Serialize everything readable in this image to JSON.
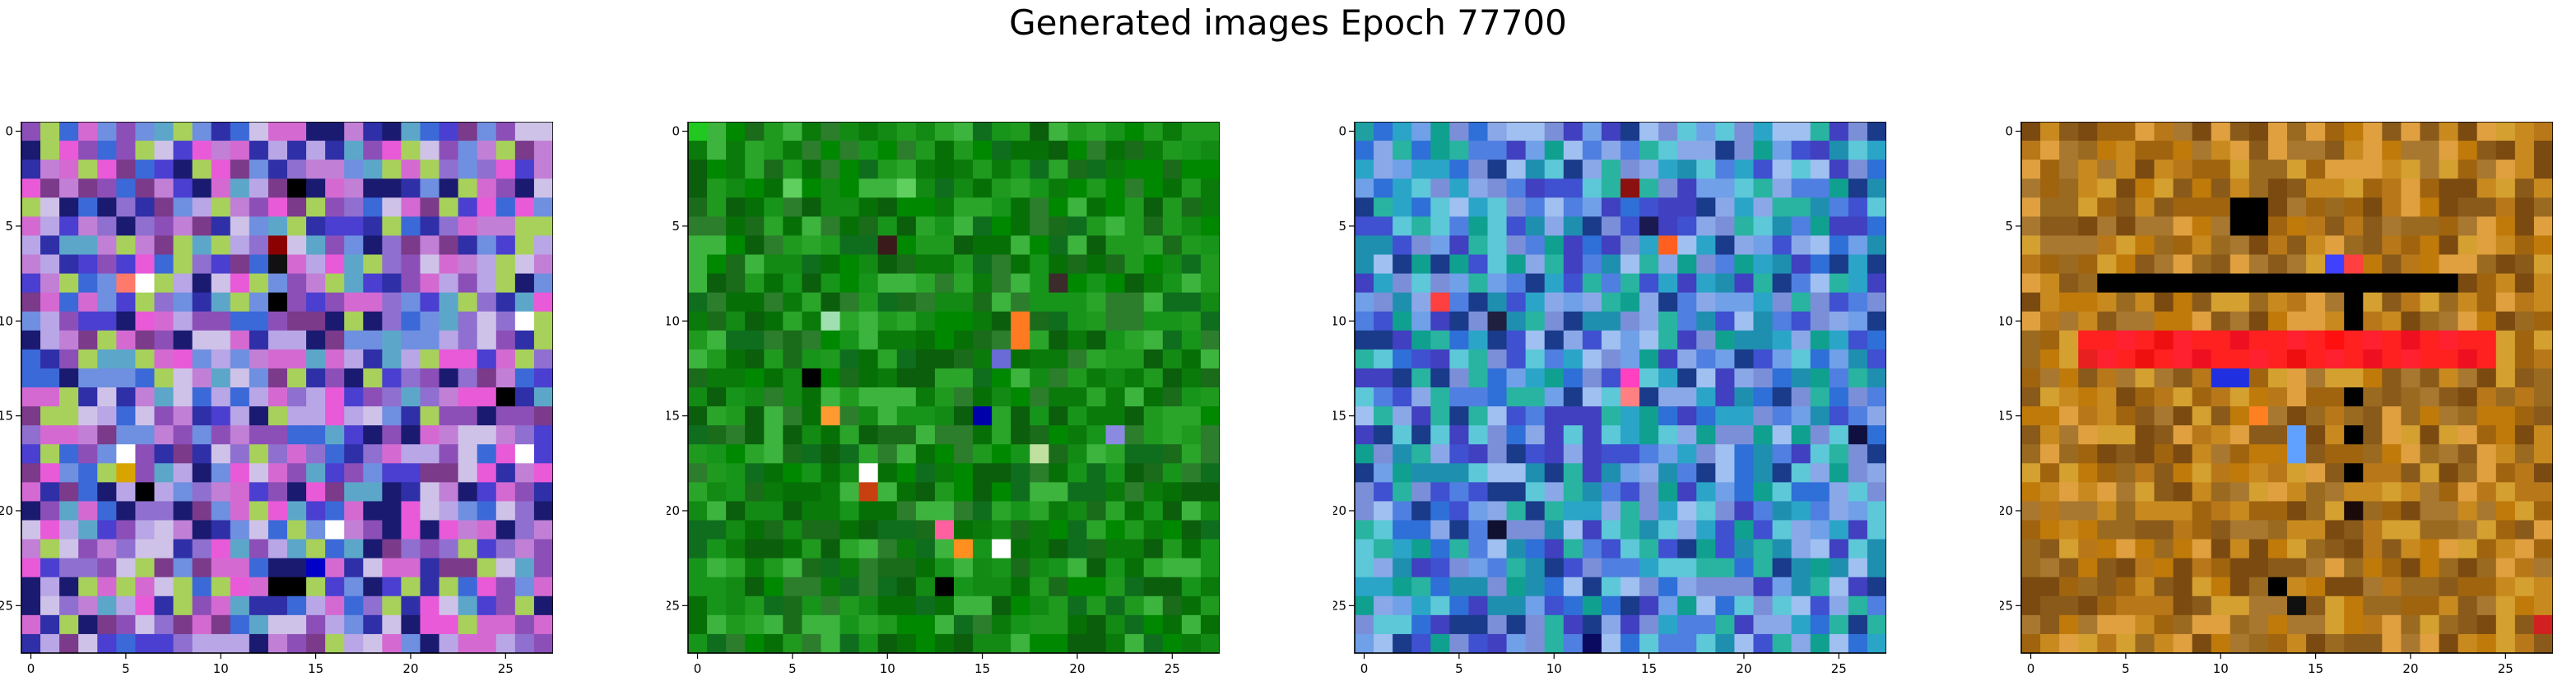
{
  "figure": {
    "title": "Generated images Epoch 77700"
  },
  "chart_data": [
    {
      "type": "heatmap",
      "title": "",
      "xlabel": "",
      "ylabel": "",
      "grid_size": [
        28,
        28
      ],
      "xlim": [
        -0.5,
        27.5
      ],
      "ylim": [
        27.5,
        -0.5
      ],
      "x_ticks": [
        0,
        5,
        10,
        15,
        20,
        25
      ],
      "y_ticks": [
        0,
        5,
        10,
        15,
        20,
        25
      ],
      "grid": false,
      "palette": [
        "#8f6fcf",
        "#c27fd6",
        "#4a3fd0",
        "#6f8fe0",
        "#b9a6e6",
        "#2f2fa8",
        "#d46ad1",
        "#5ca7c9",
        "#8c4fb8",
        "#cfc2e8",
        "#1a1a70",
        "#a7d15a",
        "#3b69d8",
        "#e85ad7",
        "#7b3a8a"
      ],
      "accents": [
        {
          "row": 3,
          "col": 14,
          "color": "#000000"
        },
        {
          "row": 6,
          "col": 13,
          "color": "#8b0000"
        },
        {
          "row": 7,
          "col": 13,
          "color": "#111111"
        },
        {
          "row": 8,
          "col": 5,
          "color": "#ff7a6b"
        },
        {
          "row": 8,
          "col": 6,
          "color": "#ffffff"
        },
        {
          "row": 9,
          "col": 13,
          "color": "#000000"
        },
        {
          "row": 10,
          "col": 26,
          "color": "#ffffff"
        },
        {
          "row": 14,
          "col": 25,
          "color": "#000000"
        },
        {
          "row": 17,
          "col": 5,
          "color": "#ffffff"
        },
        {
          "row": 17,
          "col": 26,
          "color": "#ffffff"
        },
        {
          "row": 18,
          "col": 5,
          "color": "#d8a400"
        },
        {
          "row": 19,
          "col": 6,
          "color": "#000000"
        },
        {
          "row": 21,
          "col": 16,
          "color": "#ffffff"
        },
        {
          "row": 23,
          "col": 15,
          "color": "#0000c8"
        },
        {
          "row": 24,
          "col": 13,
          "color": "#000000"
        },
        {
          "row": 24,
          "col": 14,
          "color": "#000000"
        }
      ]
    },
    {
      "type": "heatmap",
      "title": "",
      "xlabel": "",
      "ylabel": "",
      "grid_size": [
        28,
        28
      ],
      "xlim": [
        -0.5,
        27.5
      ],
      "ylim": [
        27.5,
        -0.5
      ],
      "x_ticks": [
        0,
        5,
        10,
        15,
        20,
        25
      ],
      "y_ticks": [
        0,
        5,
        10,
        15,
        20,
        25
      ],
      "grid": false,
      "palette": [
        "#138a13",
        "#0a7a0a",
        "#1f9a1f",
        "#2aa52a",
        "#067006",
        "#0e6e1e",
        "#3db43d",
        "#0b5e0b",
        "#17951a",
        "#2c7d2c",
        "#008800",
        "#1a6b1a"
      ],
      "accents": [
        {
          "row": 0,
          "col": 0,
          "color": "#20c820"
        },
        {
          "row": 3,
          "col": 5,
          "color": "#5fd05f"
        },
        {
          "row": 3,
          "col": 11,
          "color": "#5fd05f"
        },
        {
          "row": 6,
          "col": 10,
          "color": "#3a1a1a"
        },
        {
          "row": 8,
          "col": 19,
          "color": "#3b2b2b"
        },
        {
          "row": 10,
          "col": 7,
          "color": "#a0e0b0"
        },
        {
          "row": 10,
          "col": 17,
          "color": "#ff7a20"
        },
        {
          "row": 11,
          "col": 17,
          "color": "#ff7a20"
        },
        {
          "row": 12,
          "col": 16,
          "color": "#6b6bd8"
        },
        {
          "row": 13,
          "col": 6,
          "color": "#000000"
        },
        {
          "row": 15,
          "col": 7,
          "color": "#ff9a30"
        },
        {
          "row": 15,
          "col": 15,
          "color": "#0000aa"
        },
        {
          "row": 16,
          "col": 22,
          "color": "#8a8ae0"
        },
        {
          "row": 17,
          "col": 18,
          "color": "#c0e0a0"
        },
        {
          "row": 18,
          "col": 9,
          "color": "#ffffff"
        },
        {
          "row": 19,
          "col": 9,
          "color": "#c84010"
        },
        {
          "row": 21,
          "col": 13,
          "color": "#ff60a0"
        },
        {
          "row": 22,
          "col": 14,
          "color": "#ff9020"
        },
        {
          "row": 22,
          "col": 16,
          "color": "#ffffff"
        },
        {
          "row": 24,
          "col": 13,
          "color": "#000000"
        }
      ]
    },
    {
      "type": "heatmap",
      "title": "",
      "xlabel": "",
      "ylabel": "",
      "grid_size": [
        28,
        28
      ],
      "xlim": [
        -0.5,
        27.5
      ],
      "ylim": [
        27.5,
        -0.5
      ],
      "x_ticks": [
        0,
        5,
        10,
        15,
        20,
        25
      ],
      "y_ticks": [
        0,
        5,
        10,
        15,
        20,
        25
      ],
      "grid": false,
      "palette": [
        "#4f7fe0",
        "#2aa5c8",
        "#6fa0e8",
        "#1f8fb0",
        "#8aa8e8",
        "#3f50d0",
        "#28b4a0",
        "#9fc0f0",
        "#2f6fd8",
        "#5cc8d8",
        "#1a3a8a",
        "#7b8fd8",
        "#10a090",
        "#4040c0"
      ],
      "accents": [
        {
          "row": 0,
          "col": 0,
          "color": "#20a0a0"
        },
        {
          "row": 3,
          "col": 14,
          "color": "#8b1010"
        },
        {
          "row": 5,
          "col": 15,
          "color": "#1a1a50"
        },
        {
          "row": 6,
          "col": 16,
          "color": "#ff6020"
        },
        {
          "row": 9,
          "col": 4,
          "color": "#ff4040"
        },
        {
          "row": 10,
          "col": 7,
          "color": "#1f1f3f"
        },
        {
          "row": 13,
          "col": 14,
          "color": "#ff40c0"
        },
        {
          "row": 14,
          "col": 14,
          "color": "#ff8080"
        },
        {
          "row": 16,
          "col": 26,
          "color": "#101040"
        },
        {
          "row": 21,
          "col": 7,
          "color": "#101030"
        },
        {
          "row": 27,
          "col": 12,
          "color": "#0a0a60"
        }
      ]
    },
    {
      "type": "heatmap",
      "title": "",
      "xlabel": "",
      "ylabel": "",
      "grid_size": [
        28,
        28
      ],
      "xlim": [
        -0.5,
        27.5
      ],
      "ylim": [
        27.5,
        -0.5
      ],
      "x_ticks": [
        0,
        5,
        10,
        15,
        20,
        25
      ],
      "y_ticks": [
        0,
        5,
        10,
        15,
        20,
        25
      ],
      "grid": false,
      "palette": [
        "#b8781a",
        "#a0640f",
        "#c88a1f",
        "#8a5a1a",
        "#d4a030",
        "#9a6a20",
        "#7a4a10",
        "#c07a0a",
        "#e0a040",
        "#a87830"
      ],
      "accents": [
        {
          "row": 4,
          "col": 11,
          "color": "#000000"
        },
        {
          "row": 4,
          "col": 12,
          "color": "#000000"
        },
        {
          "row": 5,
          "col": 11,
          "color": "#000000"
        },
        {
          "row": 5,
          "col": 12,
          "color": "#000000"
        },
        {
          "row": 7,
          "col": 16,
          "color": "#4040ff"
        },
        {
          "row": 7,
          "col": 17,
          "color": "#ff4040"
        },
        {
          "row": 8,
          "col": 4,
          "color": "#000000"
        },
        {
          "row": 8,
          "col": 5,
          "color": "#000000"
        },
        {
          "row": 8,
          "col": 6,
          "color": "#000000"
        },
        {
          "row": 8,
          "col": 7,
          "color": "#000000"
        },
        {
          "row": 8,
          "col": 8,
          "color": "#000000"
        },
        {
          "row": 8,
          "col": 9,
          "color": "#000000"
        },
        {
          "row": 8,
          "col": 10,
          "color": "#000000"
        },
        {
          "row": 8,
          "col": 11,
          "color": "#000000"
        },
        {
          "row": 8,
          "col": 12,
          "color": "#000000"
        },
        {
          "row": 8,
          "col": 13,
          "color": "#000000"
        },
        {
          "row": 8,
          "col": 14,
          "color": "#000000"
        },
        {
          "row": 8,
          "col": 15,
          "color": "#000000"
        },
        {
          "row": 8,
          "col": 16,
          "color": "#000000"
        },
        {
          "row": 8,
          "col": 17,
          "color": "#000000"
        },
        {
          "row": 8,
          "col": 18,
          "color": "#000000"
        },
        {
          "row": 8,
          "col": 19,
          "color": "#000000"
        },
        {
          "row": 8,
          "col": 20,
          "color": "#000000"
        },
        {
          "row": 8,
          "col": 21,
          "color": "#000000"
        },
        {
          "row": 8,
          "col": 22,
          "color": "#000000"
        },
        {
          "row": 9,
          "col": 17,
          "color": "#000000"
        },
        {
          "row": 10,
          "col": 17,
          "color": "#000000"
        },
        {
          "row": 11,
          "col": 3,
          "color": "#ff2020"
        },
        {
          "row": 11,
          "col": 4,
          "color": "#ff2020"
        },
        {
          "row": 11,
          "col": 5,
          "color": "#ff2030"
        },
        {
          "row": 11,
          "col": 6,
          "color": "#ff2020"
        },
        {
          "row": 11,
          "col": 7,
          "color": "#ee1010"
        },
        {
          "row": 11,
          "col": 8,
          "color": "#ff2030"
        },
        {
          "row": 11,
          "col": 9,
          "color": "#ff2020"
        },
        {
          "row": 11,
          "col": 10,
          "color": "#ff2020"
        },
        {
          "row": 11,
          "col": 11,
          "color": "#ee1020"
        },
        {
          "row": 11,
          "col": 12,
          "color": "#ff2020"
        },
        {
          "row": 11,
          "col": 13,
          "color": "#ff2020"
        },
        {
          "row": 11,
          "col": 14,
          "color": "#ff2030"
        },
        {
          "row": 11,
          "col": 15,
          "color": "#ff2020"
        },
        {
          "row": 11,
          "col": 16,
          "color": "#ff1010"
        },
        {
          "row": 11,
          "col": 17,
          "color": "#ff2020"
        },
        {
          "row": 11,
          "col": 18,
          "color": "#ff2030"
        },
        {
          "row": 11,
          "col": 19,
          "color": "#ff2020"
        },
        {
          "row": 11,
          "col": 20,
          "color": "#ee1020"
        },
        {
          "row": 11,
          "col": 21,
          "color": "#ff2020"
        },
        {
          "row": 11,
          "col": 22,
          "color": "#ff2030"
        },
        {
          "row": 11,
          "col": 23,
          "color": "#ff2020"
        },
        {
          "row": 11,
          "col": 24,
          "color": "#ff2020"
        },
        {
          "row": 12,
          "col": 3,
          "color": "#e82020"
        },
        {
          "row": 12,
          "col": 4,
          "color": "#ff2030"
        },
        {
          "row": 12,
          "col": 5,
          "color": "#ff2020"
        },
        {
          "row": 12,
          "col": 6,
          "color": "#ee1010"
        },
        {
          "row": 12,
          "col": 7,
          "color": "#ff2020"
        },
        {
          "row": 12,
          "col": 8,
          "color": "#ff2030"
        },
        {
          "row": 12,
          "col": 9,
          "color": "#ee1020"
        },
        {
          "row": 12,
          "col": 10,
          "color": "#ff2020"
        },
        {
          "row": 12,
          "col": 11,
          "color": "#ff2020"
        },
        {
          "row": 12,
          "col": 12,
          "color": "#ff2030"
        },
        {
          "row": 12,
          "col": 13,
          "color": "#ff2020"
        },
        {
          "row": 12,
          "col": 14,
          "color": "#ee1010"
        },
        {
          "row": 12,
          "col": 15,
          "color": "#ff2020"
        },
        {
          "row": 12,
          "col": 16,
          "color": "#ff2030"
        },
        {
          "row": 12,
          "col": 17,
          "color": "#ff2020"
        },
        {
          "row": 12,
          "col": 18,
          "color": "#ee1020"
        },
        {
          "row": 12,
          "col": 19,
          "color": "#ff2020"
        },
        {
          "row": 12,
          "col": 20,
          "color": "#ff2030"
        },
        {
          "row": 12,
          "col": 21,
          "color": "#ff2020"
        },
        {
          "row": 12,
          "col": 22,
          "color": "#ff2020"
        },
        {
          "row": 12,
          "col": 23,
          "color": "#ee1020"
        },
        {
          "row": 12,
          "col": 24,
          "color": "#ff2020"
        },
        {
          "row": 13,
          "col": 10,
          "color": "#2030e0"
        },
        {
          "row": 13,
          "col": 11,
          "color": "#2030e0"
        },
        {
          "row": 14,
          "col": 17,
          "color": "#000000"
        },
        {
          "row": 15,
          "col": 12,
          "color": "#ff8020"
        },
        {
          "row": 16,
          "col": 14,
          "color": "#60a0ff"
        },
        {
          "row": 16,
          "col": 17,
          "color": "#000000"
        },
        {
          "row": 17,
          "col": 14,
          "color": "#60a0ff"
        },
        {
          "row": 18,
          "col": 17,
          "color": "#000000"
        },
        {
          "row": 20,
          "col": 17,
          "color": "#1a0a0a"
        },
        {
          "row": 24,
          "col": 13,
          "color": "#000000"
        },
        {
          "row": 25,
          "col": 14,
          "color": "#101010"
        },
        {
          "row": 26,
          "col": 27,
          "color": "#d02020"
        }
      ]
    }
  ]
}
